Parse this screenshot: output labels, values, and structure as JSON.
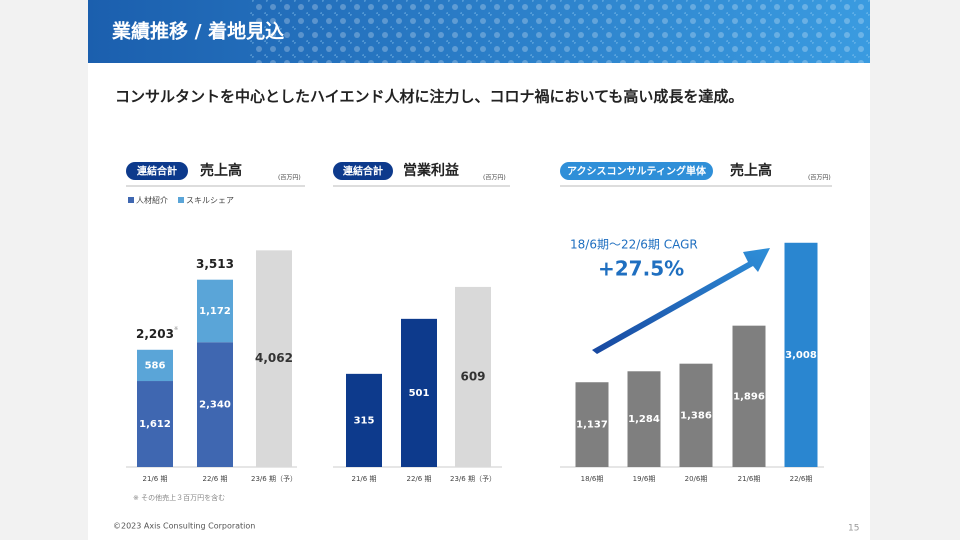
{
  "header": {
    "title": "業績推移 / 着地見込"
  },
  "subtitle": "コンサルタントを中心としたハイエンド人材に注力し、コロナ禍においても高い成長を達成。",
  "chart_data": [
    {
      "type": "bar",
      "stacked": true,
      "badge": "連結合計",
      "title": "売上高",
      "unit": "(百万円)",
      "categories": [
        "21/6 期",
        "22/6 期",
        "23/6 期（予）"
      ],
      "series": [
        {
          "name": "人材紹介",
          "color": "#3f67b1",
          "values": [
            1612,
            2340,
            null
          ],
          "value_labels": [
            "1,612",
            "2,340",
            null
          ]
        },
        {
          "name": "スキルシェア",
          "color": "#5aa5d8",
          "values": [
            586,
            1172,
            null
          ],
          "value_labels": [
            "586",
            "1,172",
            null
          ]
        },
        {
          "color": "#d9d9d9",
          "values": [
            null,
            null,
            4062
          ],
          "value_labels": [
            null,
            null,
            "4,062"
          ]
        }
      ],
      "totals": [
        2203,
        3513,
        null
      ],
      "total_labels": [
        "2,203",
        "3,513",
        null
      ],
      "total_marks": [
        "※",
        null,
        null
      ],
      "note": "※ その他売上３百万円を含む",
      "ylim": [
        0,
        4500
      ]
    },
    {
      "type": "bar",
      "badge": "連結合計",
      "title": "営業利益",
      "unit": "(百万円)",
      "categories": [
        "21/6 期",
        "22/6 期",
        "23/6 期（予）"
      ],
      "values": [
        315,
        501,
        609
      ],
      "colors": [
        "#0d3a8c",
        "#0d3a8c",
        "#d9d9d9"
      ],
      "ylim": [
        0,
        700
      ]
    },
    {
      "type": "bar",
      "badge": "アクシスコンサルティング単体",
      "title": "売上高",
      "unit": "(百万円)",
      "categories": [
        "18/6期",
        "19/6期",
        "20/6期",
        "21/6期",
        "22/6期"
      ],
      "values": [
        1137,
        1284,
        1386,
        1896,
        3008
      ],
      "value_labels": [
        "1,137",
        "1,284",
        "1,386",
        "1,896",
        "3,008"
      ],
      "colors": [
        "#7f7f7f",
        "#7f7f7f",
        "#7f7f7f",
        "#7f7f7f",
        "#2a86d0"
      ],
      "annotation": "18/6期〜22/6期 CAGR",
      "cagr": "+27.5%",
      "ylim": [
        0,
        3300
      ]
    }
  ],
  "footer": {
    "copyright": "©2023 Axis Consulting Corporation",
    "page": "15"
  }
}
